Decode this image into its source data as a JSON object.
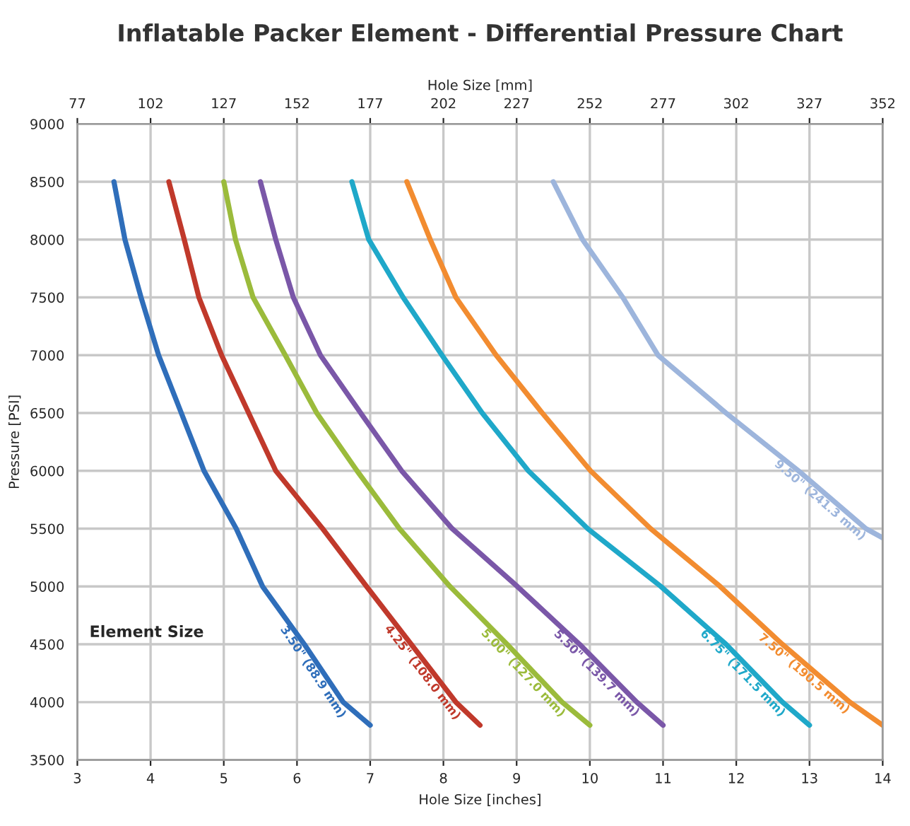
{
  "chart_data": {
    "type": "line",
    "title": "Inflatable Packer Element - Differential Pressure Chart",
    "xlabel": "Hole Size [inches]",
    "ylabel": "Pressure [PSI]",
    "x2label": "Hole Size [mm]",
    "xlim": [
      3,
      14
    ],
    "xticks": [
      3,
      4,
      5,
      6,
      7,
      8,
      9,
      10,
      11,
      12,
      13,
      14
    ],
    "x2lim": [
      77,
      352
    ],
    "x2ticks": [
      77,
      102,
      127,
      152,
      177,
      202,
      227,
      252,
      277,
      302,
      327,
      352
    ],
    "ylim": [
      3500,
      9000
    ],
    "yticks": [
      3500,
      4000,
      4500,
      5000,
      5500,
      6000,
      6500,
      7000,
      7500,
      8000,
      8500,
      9000
    ],
    "grid": true,
    "marker": "none",
    "line_style": "solid",
    "series": [
      {
        "name": "3.50\" (88.9 mm)",
        "color": "#2f6eba",
        "x": [
          3.5,
          3.65,
          3.87,
          4.11,
          4.42,
          4.73,
          5.17,
          5.53,
          6.1,
          6.63,
          7.0
        ],
        "values": [
          8500,
          8000,
          7500,
          7000,
          6500,
          6000,
          5500,
          5000,
          4500,
          4000,
          3800
        ]
      },
      {
        "name": "4.25\" (108.0 mm)",
        "color": "#c0392b",
        "x": [
          4.25,
          4.46,
          4.66,
          4.97,
          5.34,
          5.71,
          6.35,
          6.95,
          7.56,
          8.17,
          8.5
        ],
        "values": [
          8500,
          8000,
          7500,
          7000,
          6500,
          6000,
          5500,
          5000,
          4500,
          4000,
          3800
        ]
      },
      {
        "name": "5.00\" (127.0 mm)",
        "color": "#9bbb3b",
        "x": [
          5.0,
          5.16,
          5.4,
          5.84,
          6.27,
          6.82,
          7.4,
          8.09,
          8.87,
          9.62,
          10.0
        ],
        "values": [
          8500,
          8000,
          7500,
          7000,
          6500,
          6000,
          5500,
          5000,
          4500,
          4000,
          3800
        ]
      },
      {
        "name": "5.50\" (139.7 mm)",
        "color": "#7a57a8",
        "x": [
          5.5,
          5.71,
          5.95,
          6.32,
          6.87,
          7.43,
          8.12,
          9.01,
          9.86,
          10.64,
          11.0
        ],
        "values": [
          8500,
          8000,
          7500,
          7000,
          6500,
          6000,
          5500,
          5000,
          4500,
          4000,
          3800
        ]
      },
      {
        "name": "6.75\" (171.5 mm)",
        "color": "#1fa8c9",
        "x": [
          6.75,
          6.98,
          7.45,
          7.98,
          8.53,
          9.16,
          9.97,
          10.97,
          11.86,
          12.63,
          13.0
        ],
        "values": [
          8500,
          8000,
          7500,
          7000,
          6500,
          6000,
          5500,
          5000,
          4500,
          4000,
          3800
        ]
      },
      {
        "name": "7.50\" (190.5 mm)",
        "color": "#f28c30",
        "x": [
          7.5,
          7.82,
          8.17,
          8.72,
          9.35,
          10.01,
          10.83,
          11.78,
          12.63,
          13.55,
          14.0
        ],
        "values": [
          8500,
          8000,
          7500,
          7000,
          6500,
          6000,
          5500,
          5000,
          4500,
          4000,
          3800
        ]
      },
      {
        "name": "9.50\" (241.3 mm)",
        "color": "#9db5dc",
        "x": [
          9.5,
          9.9,
          10.45,
          10.93,
          11.86,
          12.85,
          13.77,
          14.0
        ],
        "values": [
          8500,
          8000,
          7500,
          7000,
          6500,
          6000,
          5500,
          5420
        ]
      }
    ],
    "annotations": [
      "Element Size"
    ]
  }
}
